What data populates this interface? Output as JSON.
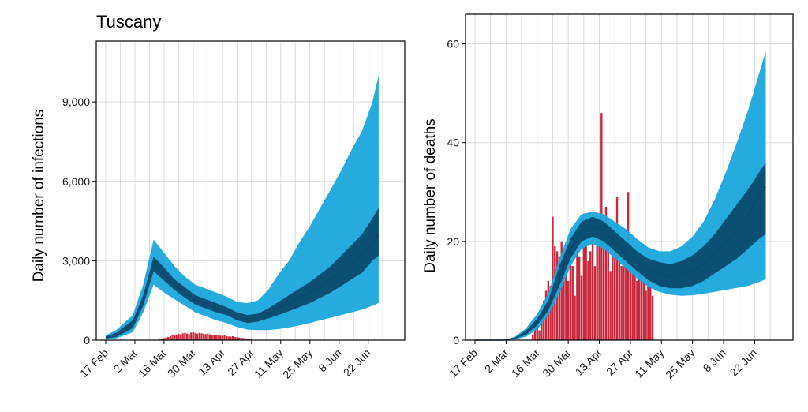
{
  "colors": {
    "outer_band": "#1aa7dc",
    "inner_band": "#0b4a6e",
    "bars": "#c8283c",
    "grid": "#dcdcdc"
  },
  "chart_data": [
    {
      "type": "area",
      "title": "Tuscany",
      "ylabel": "Daily number of infections",
      "xlabel": "",
      "x_ticks": [
        "17 Feb",
        "2 Mar",
        "16 Mar",
        "30 Mar",
        "13 Apr",
        "27 Apr",
        "11 May",
        "25 May",
        "8 Jun",
        "22 Jun"
      ],
      "y_ticks": [
        0,
        3000,
        6000,
        9000
      ],
      "y_tick_labels": [
        "0",
        "3,000",
        "6,000",
        "9,000"
      ],
      "ylim": [
        0,
        11300
      ],
      "grid": true,
      "band_dates": [
        "2020-02-17",
        "2020-02-22",
        "2020-03-01",
        "2020-03-06",
        "2020-03-11",
        "2020-03-16",
        "2020-03-21",
        "2020-03-26",
        "2020-03-31",
        "2020-04-05",
        "2020-04-10",
        "2020-04-15",
        "2020-04-20",
        "2020-04-25",
        "2020-04-30",
        "2020-05-05",
        "2020-05-10",
        "2020-05-15",
        "2020-05-20",
        "2020-05-25",
        "2020-05-30",
        "2020-06-04",
        "2020-06-09",
        "2020-06-14",
        "2020-06-19",
        "2020-06-24",
        "2020-06-27"
      ],
      "series": [
        {
          "values": [
            100,
            200,
            600,
            1500,
            2900,
            2500,
            2100,
            1800,
            1500,
            1400,
            1200,
            1100,
            900,
            800,
            850,
            1000,
            1200,
            1400,
            1600,
            1800,
            2000,
            2300,
            2600,
            2900,
            3200,
            3700,
            4000
          ]
        },
        {
          "values": [
            60,
            120,
            450,
            1300,
            2600,
            2250,
            1900,
            1600,
            1350,
            1200,
            1050,
            950,
            750,
            650,
            700,
            820,
            950,
            1100,
            1250,
            1400,
            1600,
            1800,
            2050,
            2300,
            2550,
            3000,
            3200
          ]
        },
        {
          "values": [
            140,
            280,
            750,
            1700,
            3150,
            2750,
            2300,
            2000,
            1700,
            1550,
            1400,
            1250,
            1050,
            950,
            1000,
            1200,
            1450,
            1700,
            1950,
            2200,
            2500,
            2800,
            3200,
            3600,
            4000,
            4600,
            5000
          ]
        },
        {
          "values": [
            20,
            70,
            300,
            1050,
            2100,
            1800,
            1550,
            1300,
            1050,
            900,
            750,
            650,
            500,
            400,
            380,
            380,
            420,
            480,
            560,
            650,
            750,
            850,
            950,
            1050,
            1150,
            1300,
            1400
          ]
        },
        {
          "values": [
            180,
            380,
            950,
            2100,
            3800,
            3300,
            2800,
            2400,
            2100,
            1950,
            1800,
            1650,
            1450,
            1400,
            1500,
            1900,
            2500,
            3000,
            3700,
            4300,
            5000,
            5700,
            6400,
            7200,
            7900,
            9000,
            10000
          ]
        }
      ],
      "bars": {
        "start": "2020-03-14",
        "values": [
          30,
          50,
          80,
          100,
          120,
          150,
          180,
          200,
          210,
          240,
          220,
          260,
          280,
          250,
          230,
          290,
          300,
          270,
          250,
          280,
          260,
          240,
          230,
          250,
          220,
          200,
          190,
          210,
          180,
          170,
          160,
          190,
          150,
          140,
          130,
          150,
          120,
          110,
          100,
          90,
          80,
          70,
          60,
          50,
          40
        ]
      }
    },
    {
      "type": "area",
      "title": "",
      "ylabel": "Daily number of deaths",
      "xlabel": "",
      "x_ticks": [
        "17 Feb",
        "2 Mar",
        "16 Mar",
        "30 Mar",
        "13 Apr",
        "27 Apr",
        "11 May",
        "25 May",
        "8 Jun",
        "22 Jun"
      ],
      "y_ticks": [
        0,
        20,
        40,
        60
      ],
      "y_tick_labels": [
        "0",
        "20",
        "40",
        "60"
      ],
      "ylim": [
        0,
        66
      ],
      "grid": true,
      "band_dates": [
        "2020-02-17",
        "2020-02-22",
        "2020-03-01",
        "2020-03-06",
        "2020-03-11",
        "2020-03-16",
        "2020-03-21",
        "2020-03-26",
        "2020-03-31",
        "2020-04-05",
        "2020-04-10",
        "2020-04-15",
        "2020-04-20",
        "2020-04-25",
        "2020-04-30",
        "2020-05-05",
        "2020-05-10",
        "2020-05-15",
        "2020-05-20",
        "2020-05-25",
        "2020-05-30",
        "2020-06-04",
        "2020-06-09",
        "2020-06-14",
        "2020-06-19",
        "2020-06-24",
        "2020-06-27"
      ],
      "series": [
        {
          "values": [
            0,
            0,
            0,
            0.4,
            1.5,
            3.7,
            7,
            13,
            18.5,
            22,
            23,
            22,
            20,
            18,
            16,
            14.5,
            13.5,
            13,
            13.2,
            14,
            15.5,
            17.5,
            20,
            22.5,
            25.5,
            29,
            31
          ]
        },
        {
          "values": [
            0,
            0,
            0,
            0.25,
            1.1,
            3,
            6,
            11,
            16.5,
            20,
            21,
            20,
            18,
            16,
            14,
            12.2,
            11,
            10.5,
            10.5,
            11,
            12,
            13.5,
            15,
            16.5,
            18.5,
            20.5,
            21.5
          ]
        },
        {
          "values": [
            0,
            0,
            0,
            0.55,
            1.9,
            4.4,
            8,
            15,
            20.5,
            24,
            25,
            24,
            22,
            20,
            18,
            16.5,
            15.8,
            15.4,
            16,
            17.2,
            19,
            21.5,
            24.5,
            27.5,
            30.5,
            34,
            36
          ]
        },
        {
          "values": [
            0,
            0,
            0,
            0.15,
            0.7,
            2.2,
            5,
            9.5,
            15,
            18.5,
            19.5,
            18.5,
            16.5,
            14.5,
            12.5,
            10.8,
            9.8,
            9.2,
            9,
            9.1,
            9.4,
            9.8,
            10.2,
            10.6,
            11,
            11.8,
            12.3
          ]
        },
        {
          "values": [
            0,
            0,
            0,
            0.7,
            2.4,
            5.3,
            9.5,
            16.5,
            22.5,
            25.5,
            26,
            25.5,
            24,
            22.5,
            20.5,
            18.8,
            18,
            18,
            19,
            21,
            24,
            28.5,
            34,
            40,
            46.5,
            54,
            58.5
          ]
        }
      ],
      "bars": {
        "start": "2020-03-14",
        "values": [
          1,
          3,
          4,
          2,
          6,
          8,
          10,
          12,
          11,
          25,
          19,
          18,
          17,
          20,
          16,
          14,
          12,
          21,
          15,
          9,
          18,
          17,
          13,
          19,
          22,
          16,
          18,
          24,
          15,
          22,
          20,
          46,
          23,
          27,
          20,
          14,
          17,
          18,
          29,
          16,
          15,
          20,
          18,
          30,
          16,
          15,
          14,
          12,
          18,
          14,
          12,
          10,
          13,
          11,
          9
        ]
      }
    }
  ]
}
